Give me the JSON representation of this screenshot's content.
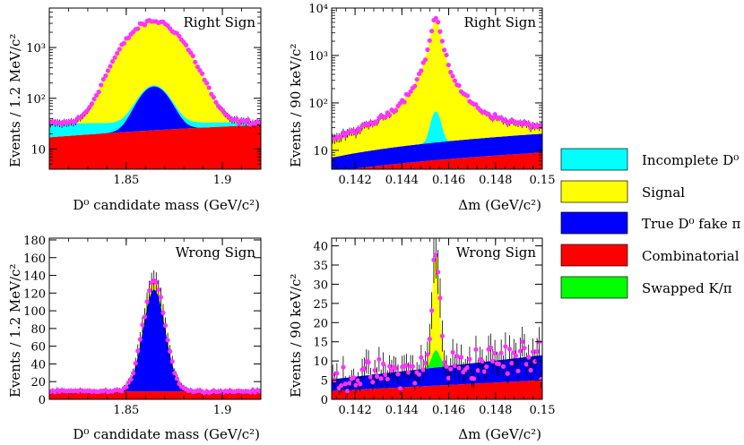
{
  "legend": [
    {
      "key": "incomplete",
      "label": "Incomplete D⁰",
      "color": "#00ffff"
    },
    {
      "key": "signal",
      "label": "Signal",
      "color": "#ffff00"
    },
    {
      "key": "fake",
      "label": "True D⁰ fake π",
      "color": "#0000ff"
    },
    {
      "key": "comb",
      "label": "Combinatorial",
      "color": "#ff0000"
    },
    {
      "key": "swapped",
      "label": "Swapped K/π",
      "color": "#00ff00"
    }
  ],
  "colors": {
    "points": "#ff33ff",
    "axis": "#000000"
  },
  "chart_data": [
    {
      "id": "rs_mass",
      "type": "area",
      "scale": "log",
      "title": "Right Sign",
      "xlabel": "D⁰ candidate mass (GeV/c²)",
      "ylabel": "Events / 1.2 MeV/c²",
      "xlim": [
        1.81,
        1.92
      ],
      "ylim": [
        4,
        6000
      ],
      "xticks": [
        {
          "v": 1.85,
          "label": "1.85"
        },
        {
          "v": 1.9,
          "label": "1.9"
        }
      ],
      "yticks": [
        {
          "v": 10,
          "label": "10"
        },
        {
          "v": 100,
          "label": "10²"
        },
        {
          "v": 1000,
          "label": "10³"
        }
      ],
      "components": {
        "comb": {
          "type": "linear",
          "a": 17,
          "b": 13
        },
        "fake": {
          "type": "gauss",
          "mean": 1.8645,
          "sigma": 0.0068,
          "peak": 148
        },
        "signal": {
          "type": "gauss",
          "mean": 1.8645,
          "sigma": 0.0112,
          "peak": 3150
        },
        "incomplete": {
          "type": "linear",
          "a": 15,
          "b": -11
        }
      },
      "data_points": {
        "n": 92,
        "noise": 0.08
      }
    },
    {
      "id": "rs_dm",
      "type": "area",
      "scale": "log",
      "title": "Right Sign",
      "xlabel": "Δm (GeV/c²)",
      "ylabel": "Events / 90 keV/c²",
      "xlim": [
        0.141,
        0.15
      ],
      "ylim": [
        4,
        10000
      ],
      "xticks": [
        {
          "v": 0.142,
          "label": "0.142"
        },
        {
          "v": 0.144,
          "label": "0.144"
        },
        {
          "v": 0.146,
          "label": "0.146"
        },
        {
          "v": 0.148,
          "label": "0.148"
        },
        {
          "v": 0.15,
          "label": "0.15"
        }
      ],
      "yticks": [
        {
          "v": 10,
          "label": "10"
        },
        {
          "v": 100,
          "label": "10²"
        },
        {
          "v": 1000,
          "label": "10³"
        },
        {
          "v": 10000,
          "label": "10⁴"
        }
      ],
      "components": {
        "comb": {
          "type": "linear",
          "a": 3.5,
          "b": 5.5
        },
        "fake": {
          "type": "linear",
          "a": 3.5,
          "b": 10
        },
        "incomplete": {
          "type": "gauss",
          "mean": 0.14545,
          "sigma": 0.00018,
          "peak": 52
        },
        "signal": {
          "type": "cauchy",
          "mean": 0.14545,
          "gamma": 0.00018,
          "peak": 6300
        }
      },
      "data_points": {
        "n": 100,
        "noise": 0.1
      }
    },
    {
      "id": "ws_mass",
      "type": "area",
      "scale": "linear",
      "title": "Wrong Sign",
      "xlabel": "D⁰ candidate mass (GeV/c²)",
      "ylabel": "Events / 1.2 MeV/c²",
      "xlim": [
        1.81,
        1.92
      ],
      "ylim": [
        0,
        182
      ],
      "xticks": [
        {
          "v": 1.85,
          "label": "1.85"
        },
        {
          "v": 1.9,
          "label": "1.9"
        }
      ],
      "yticks": [
        {
          "v": 0,
          "label": "0"
        },
        {
          "v": 20,
          "label": "20"
        },
        {
          "v": 40,
          "label": "40"
        },
        {
          "v": 60,
          "label": "60"
        },
        {
          "v": 80,
          "label": "80"
        },
        {
          "v": 100,
          "label": "100"
        },
        {
          "v": 120,
          "label": "120"
        },
        {
          "v": 140,
          "label": "140"
        },
        {
          "v": 160,
          "label": "160"
        },
        {
          "v": 180,
          "label": "180"
        }
      ],
      "components": {
        "comb": {
          "type": "linear",
          "a": 9,
          "b": 0
        },
        "fake": {
          "type": "gauss",
          "mean": 1.8645,
          "sigma": 0.0058,
          "peak": 115
        },
        "signal": {
          "type": "gauss",
          "mean": 1.8645,
          "sigma": 0.005,
          "peak": 12
        }
      },
      "data_points": {
        "n": 92,
        "noise": 0.14
      }
    },
    {
      "id": "ws_dm",
      "type": "area",
      "scale": "linear",
      "title": "Wrong Sign",
      "xlabel": "Δm (GeV/c²)",
      "ylabel": "Events / 90 keV/c²",
      "xlim": [
        0.141,
        0.15
      ],
      "ylim": [
        0,
        42
      ],
      "xticks": [
        {
          "v": 0.142,
          "label": "0.142"
        },
        {
          "v": 0.144,
          "label": "0.144"
        },
        {
          "v": 0.146,
          "label": "0.146"
        },
        {
          "v": 0.148,
          "label": "0.148"
        },
        {
          "v": 0.15,
          "label": "0.15"
        }
      ],
      "yticks": [
        {
          "v": 0,
          "label": "0"
        },
        {
          "v": 5,
          "label": "5"
        },
        {
          "v": 10,
          "label": "10"
        },
        {
          "v": 15,
          "label": "15"
        },
        {
          "v": 20,
          "label": "20"
        },
        {
          "v": 25,
          "label": "25"
        },
        {
          "v": 30,
          "label": "30"
        },
        {
          "v": 35,
          "label": "35"
        },
        {
          "v": 40,
          "label": "40"
        }
      ],
      "components": {
        "comb": {
          "type": "linear",
          "a": 2.2,
          "b": 2.8
        },
        "fake": {
          "type": "linear",
          "a": 3,
          "b": 3.5
        },
        "swapped": {
          "type": "gauss",
          "mean": 0.14545,
          "sigma": 0.00018,
          "peak": 4.5
        },
        "signal": {
          "type": "gauss",
          "mean": 0.14545,
          "sigma": 0.00015,
          "peak": 26
        }
      },
      "data_points": {
        "n": 100,
        "noise": 0.5
      }
    }
  ]
}
